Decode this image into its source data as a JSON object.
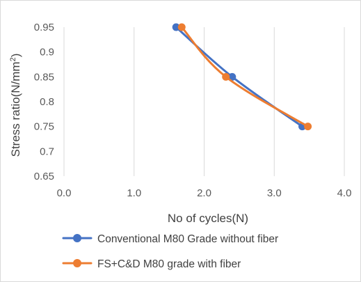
{
  "chart_data": {
    "type": "line",
    "title": "",
    "xlabel": "No of cycles(N)",
    "ylabel_main": "Stress ratio(N/mm",
    "ylabel_sup": "2",
    "ylabel_close": ")",
    "xlim": [
      0.0,
      4.0
    ],
    "ylim": [
      0.65,
      0.95
    ],
    "x_ticks": [
      "0.0",
      "1.0",
      "2.0",
      "3.0",
      "4.0"
    ],
    "y_ticks": [
      "0.65",
      "0.7",
      "0.75",
      "0.8",
      "0.85",
      "0.9",
      "0.95"
    ],
    "grid": "vertical",
    "legend_position": "bottom",
    "series": [
      {
        "name": "Conventional M80 Grade without fiber",
        "color": "#4472c4",
        "x": [
          1.6,
          2.4,
          3.4
        ],
        "y": [
          0.95,
          0.85,
          0.75
        ]
      },
      {
        "name": "FS+C&D M80 grade with fiber",
        "color": "#ed7d31",
        "x": [
          1.68,
          2.31,
          3.48
        ],
        "y": [
          0.95,
          0.85,
          0.75
        ]
      }
    ]
  }
}
